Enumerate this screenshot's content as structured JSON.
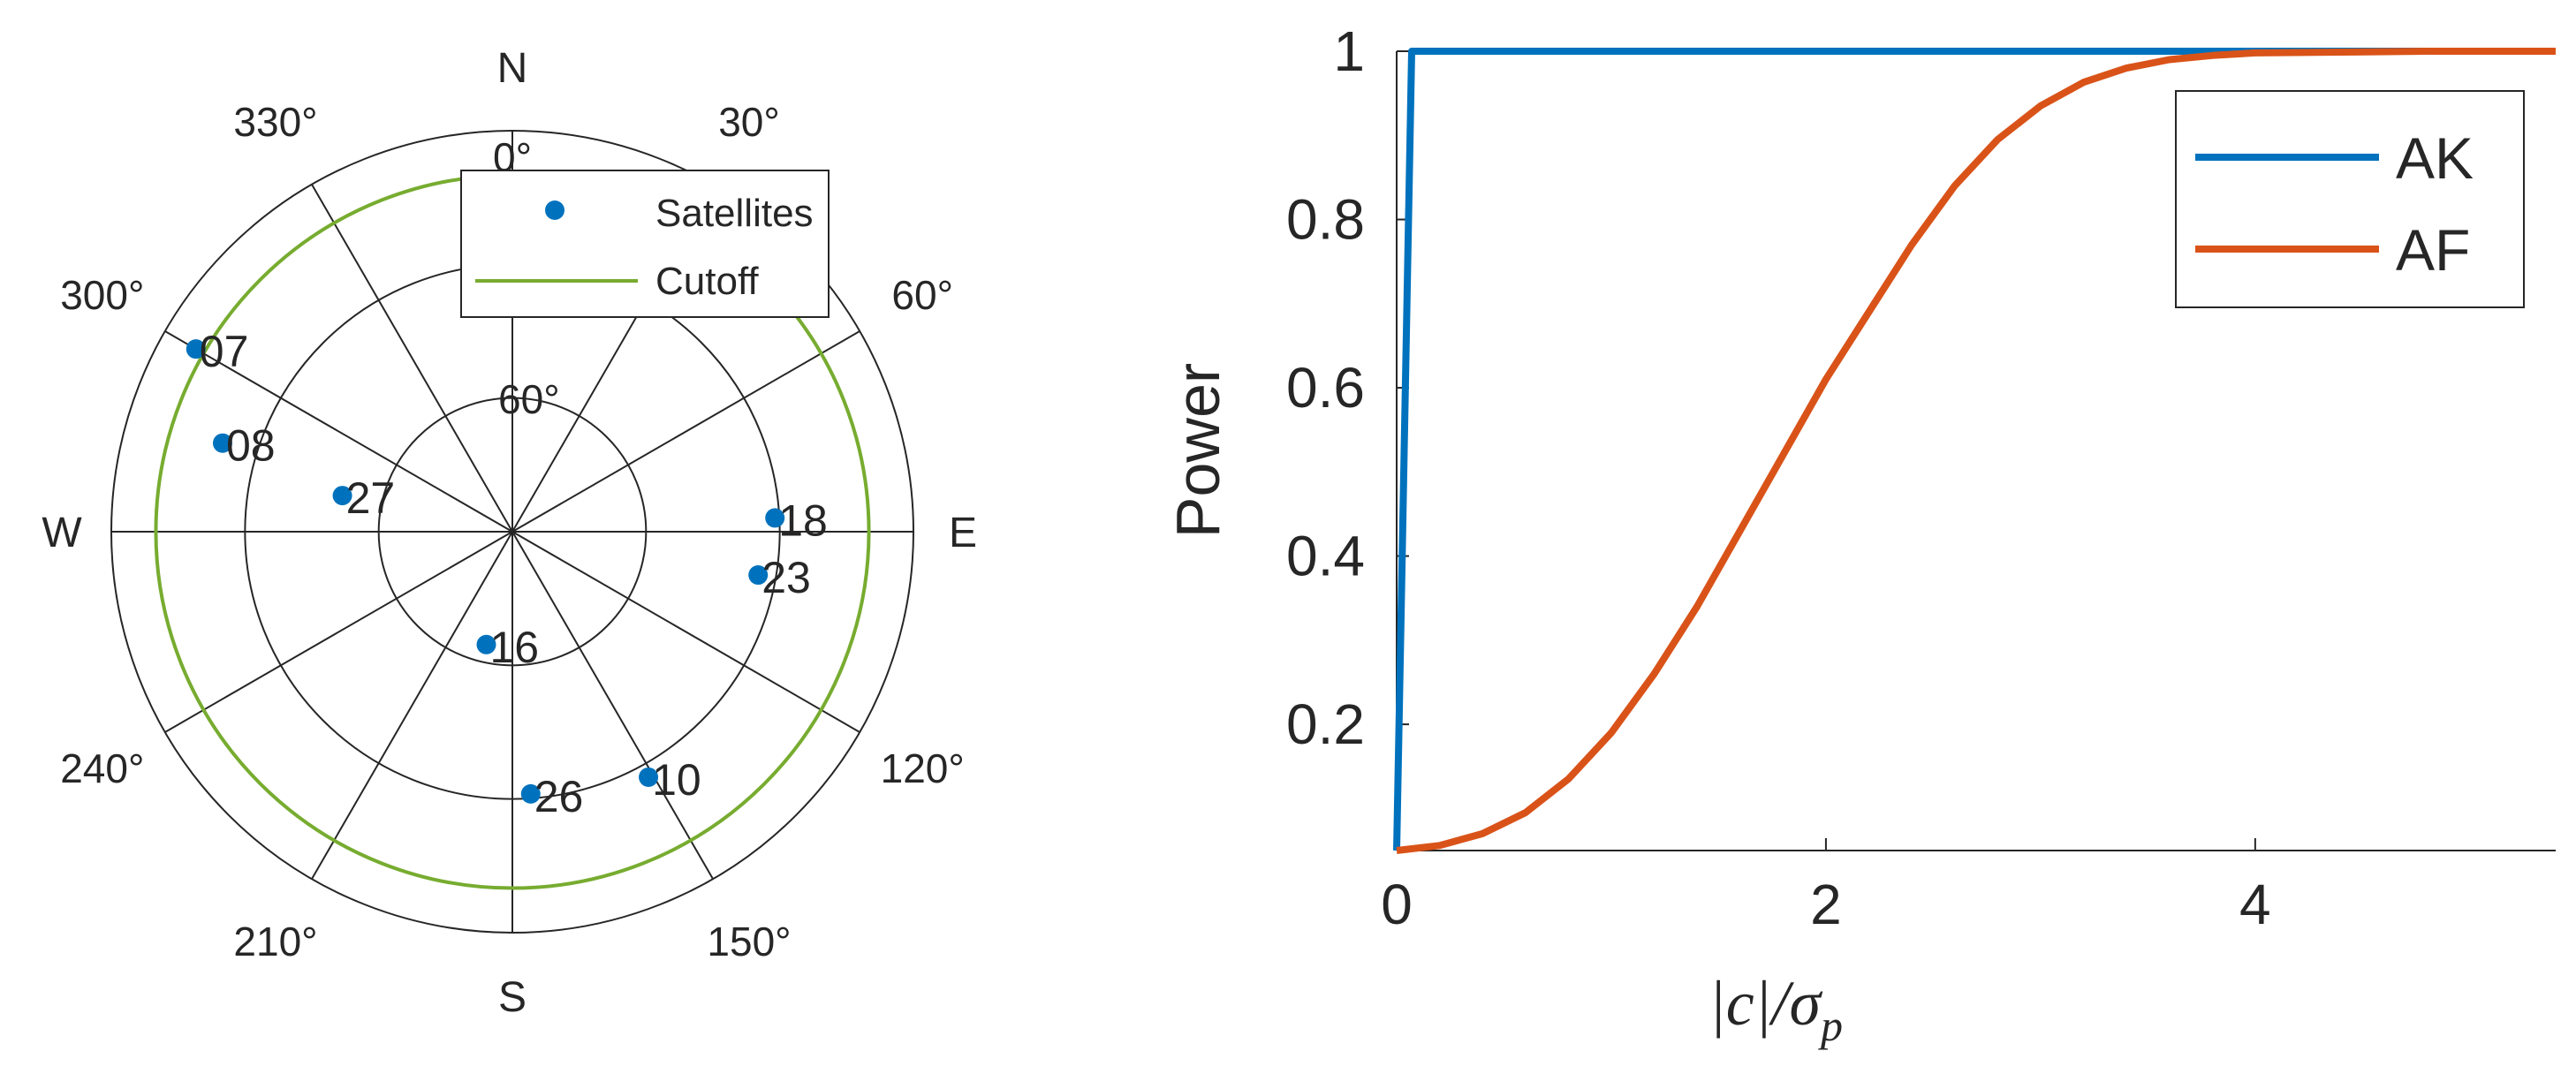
{
  "chart_data": [
    {
      "type": "polar-scatter",
      "compass": {
        "N": "N",
        "E": "E",
        "S": "S",
        "W": "W"
      },
      "azimuth_ticks": [
        {
          "az": 0,
          "label": "0°"
        },
        {
          "az": 30,
          "label": "30°"
        },
        {
          "az": 60,
          "label": "60°"
        },
        {
          "az": 120,
          "label": "120°"
        },
        {
          "az": 150,
          "label": "150°"
        },
        {
          "az": 210,
          "label": "210°"
        },
        {
          "az": 240,
          "label": "240°"
        },
        {
          "az": 300,
          "label": "300°"
        },
        {
          "az": 330,
          "label": "330°"
        }
      ],
      "elevation_rings": [
        60,
        30,
        0
      ],
      "elevation_ring_labels": [
        {
          "el": 60,
          "label": "60°"
        }
      ],
      "cutoff_elevation": 10,
      "satellites": [
        {
          "id": "07",
          "az": 300,
          "el": 8
        },
        {
          "id": "08",
          "az": 287,
          "el": 22
        },
        {
          "id": "27",
          "az": 282,
          "el": 51
        },
        {
          "id": "18",
          "az": 87,
          "el": 31
        },
        {
          "id": "23",
          "az": 100,
          "el": 34
        },
        {
          "id": "16",
          "az": 193,
          "el": 64
        },
        {
          "id": "26",
          "az": 176,
          "el": 31
        },
        {
          "id": "10",
          "az": 151,
          "el": 27
        }
      ],
      "legend": [
        {
          "label": "Satellites",
          "color": "#0072BD",
          "marker": "dot"
        },
        {
          "label": "Cutoff",
          "color": "#77AC30",
          "marker": "line"
        }
      ],
      "grid": true
    },
    {
      "type": "line",
      "xlabel": "|c|/σp",
      "ylabel": "Power",
      "xlim": [
        0,
        5.4
      ],
      "ylim": [
        0.05,
        1
      ],
      "xticks": [
        0,
        2,
        4
      ],
      "yticks": [
        0.2,
        0.4,
        0.6,
        0.8,
        1
      ],
      "grid": false,
      "legend_position": "top-right",
      "series": [
        {
          "name": "AK",
          "color": "#0072BD",
          "x": [
            0,
            0.07,
            0.5,
            1,
            2,
            3,
            4,
            5,
            5.4
          ],
          "y": [
            0.05,
            1,
            1,
            1,
            1,
            1,
            1,
            1,
            1
          ]
        },
        {
          "name": "AF",
          "color": "#D95319",
          "x": [
            0,
            0.2,
            0.4,
            0.6,
            0.8,
            1.0,
            1.2,
            1.4,
            1.6,
            1.8,
            2.0,
            2.2,
            2.4,
            2.6,
            2.8,
            3.0,
            3.2,
            3.4,
            3.6,
            3.8,
            4.0,
            4.4,
            4.8,
            5.4
          ],
          "y": [
            0.05,
            0.056,
            0.07,
            0.095,
            0.135,
            0.19,
            0.26,
            0.34,
            0.43,
            0.52,
            0.61,
            0.69,
            0.77,
            0.84,
            0.895,
            0.935,
            0.963,
            0.98,
            0.99,
            0.995,
            0.998,
            0.999,
            1.0,
            1.0
          ]
        }
      ]
    }
  ]
}
